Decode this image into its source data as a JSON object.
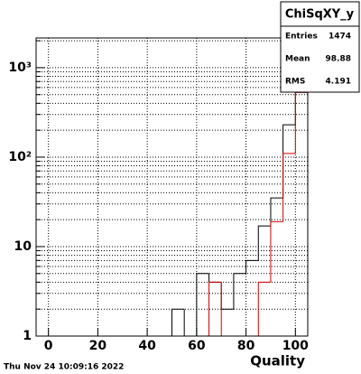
{
  "chart_data": {
    "type": "histogram",
    "title": "ChiSqXY_y",
    "x_label": "Quality",
    "timestamp": "Thu Nov 24 10:09:16 2022",
    "bins": [
      -5,
      0,
      5,
      10,
      15,
      20,
      25,
      30,
      35,
      40,
      45,
      50,
      55,
      60,
      65,
      70,
      75,
      80,
      85,
      90,
      95,
      100,
      105
    ],
    "series": [
      {
        "color": "#000000",
        "values": [
          0,
          0,
          0,
          0,
          0,
          0,
          0,
          0,
          0,
          0,
          0,
          2,
          0,
          5,
          4,
          2,
          5,
          7,
          17,
          35,
          230,
          530
        ]
      },
      {
        "color": "#d00000",
        "values": [
          0,
          0,
          0,
          0,
          0,
          0,
          0,
          0,
          0,
          0,
          0,
          0,
          0,
          0,
          4,
          0,
          0,
          0,
          4,
          19,
          110,
          530
        ]
      }
    ],
    "xlim": [
      -5,
      105
    ],
    "xticks": [
      0,
      20,
      40,
      60,
      80,
      100
    ],
    "ylim": [
      1,
      2150
    ],
    "yticks": [
      1,
      10,
      {
        "value": 100,
        "label": "10²"
      },
      {
        "value": 1000,
        "label": "10³"
      }
    ],
    "log_y": true,
    "grid": true,
    "stats": {
      "rows": [
        [
          "Entries",
          "1474"
        ],
        [
          "Mean",
          "98.88"
        ],
        [
          "RMS",
          "4.191"
        ]
      ]
    }
  }
}
